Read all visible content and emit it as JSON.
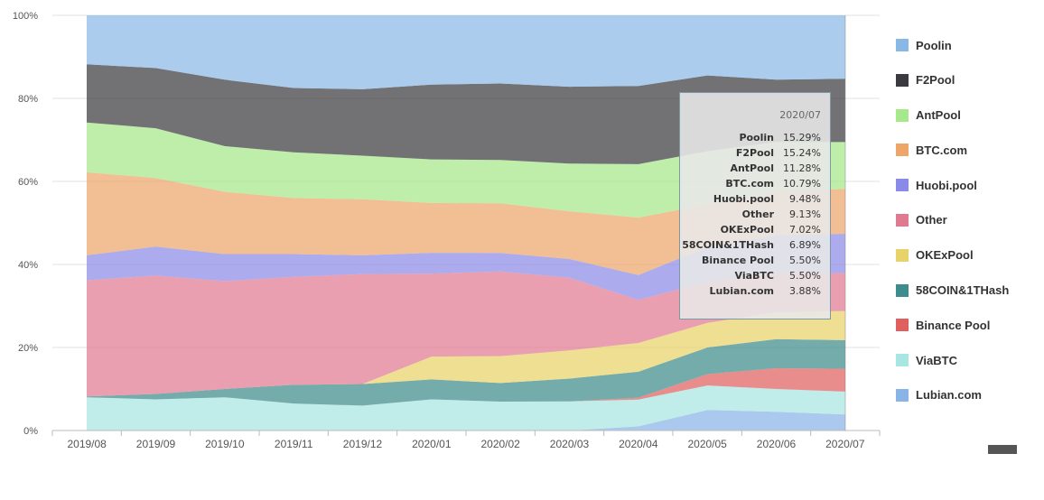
{
  "chart_data": {
    "type": "area",
    "stacked": "percent",
    "categories": [
      "2019/08",
      "2019/09",
      "2019/10",
      "2019/11",
      "2019/12",
      "2020/01",
      "2020/02",
      "2020/03",
      "2020/04",
      "2020/05",
      "2020/06",
      "2020/07"
    ],
    "y_ticks": [
      "100%",
      "80%",
      "60%",
      "40%",
      "20%",
      "0%"
    ],
    "ylim": [
      0,
      100
    ],
    "grid": true,
    "legend_position": "right",
    "series": [
      {
        "name": "Lubian.com",
        "color": "#8ab4e8",
        "values": [
          0,
          0,
          0,
          0,
          0,
          0,
          0,
          0,
          1,
          5,
          4.5,
          3.88
        ]
      },
      {
        "name": "ViaBTC",
        "color": "#a8e6e2",
        "values": [
          8,
          7.5,
          8,
          6.5,
          6,
          7.5,
          7,
          7,
          6.5,
          6,
          5.5,
          5.5
        ]
      },
      {
        "name": "Binance Pool",
        "color": "#e06060",
        "values": [
          0,
          0,
          0,
          0,
          0,
          0,
          0,
          0,
          0.5,
          2.8,
          5,
          5.5
        ]
      },
      {
        "name": "58COIN&1THash",
        "color": "#3f8c8c",
        "values": [
          0.2,
          1.3,
          2,
          4.5,
          5.2,
          4.8,
          4.5,
          5.5,
          6.3,
          6.5,
          7,
          6.89
        ]
      },
      {
        "name": "OKExPool",
        "color": "#e8d36a",
        "values": [
          0,
          0,
          0,
          0,
          0,
          5.5,
          6.5,
          6.8,
          7,
          6,
          6.5,
          7.02
        ]
      },
      {
        "name": "Other",
        "color": "#e07a90",
        "values": [
          28,
          28.5,
          26,
          26,
          26.5,
          20,
          20.5,
          17.5,
          10.5,
          10,
          9.5,
          9.13
        ]
      },
      {
        "name": "Huobi.pool",
        "color": "#8a8ae8",
        "values": [
          6,
          7,
          6.5,
          5.5,
          4.5,
          5,
          4.5,
          4.5,
          6,
          8.5,
          9,
          9.48
        ]
      },
      {
        "name": "BTC.com",
        "color": "#eda56a",
        "values": [
          20,
          16.5,
          15,
          13.5,
          13.5,
          12,
          12,
          11.5,
          14,
          10.5,
          10.5,
          10.79
        ]
      },
      {
        "name": "AntPool",
        "color": "#a6e88a",
        "values": [
          12,
          12,
          11,
          11,
          10.5,
          10.5,
          10.5,
          11.5,
          13,
          13,
          12,
          11.28
        ]
      },
      {
        "name": "F2Pool",
        "color": "#3b3a3f",
        "values": [
          14,
          14.5,
          16,
          15.5,
          16,
          18,
          18.5,
          18.5,
          19,
          18.5,
          15,
          15.24
        ]
      },
      {
        "name": "Poolin",
        "color": "#8ab8e6",
        "values": [
          11.8,
          12.7,
          15.5,
          17.5,
          17.8,
          16.7,
          16.5,
          17.2,
          17.2,
          14.7,
          15.5,
          15.29
        ]
      }
    ]
  },
  "legend": {
    "items": [
      {
        "label": "Poolin",
        "color": "#8ab8e6"
      },
      {
        "label": "F2Pool",
        "color": "#3b3a3f"
      },
      {
        "label": "AntPool",
        "color": "#a6e88a"
      },
      {
        "label": "BTC.com",
        "color": "#eda56a"
      },
      {
        "label": "Huobi.pool",
        "color": "#8a8ae8"
      },
      {
        "label": "Other",
        "color": "#e07a90"
      },
      {
        "label": "OKExPool",
        "color": "#e8d36a"
      },
      {
        "label": "58COIN&1THash",
        "color": "#3f8c8c"
      },
      {
        "label": "Binance Pool",
        "color": "#e06060"
      },
      {
        "label": "ViaBTC",
        "color": "#a8e6e2"
      },
      {
        "label": "Lubian.com",
        "color": "#8ab4e8"
      }
    ]
  },
  "tooltip": {
    "title": "2020/07",
    "rows": [
      {
        "name": "Poolin",
        "value": "15.29%"
      },
      {
        "name": "F2Pool",
        "value": "15.24%"
      },
      {
        "name": "AntPool",
        "value": "11.28%"
      },
      {
        "name": "BTC.com",
        "value": "10.79%"
      },
      {
        "name": "Huobi.pool",
        "value": "9.48%"
      },
      {
        "name": "Other",
        "value": "9.13%"
      },
      {
        "name": "OKExPool",
        "value": "7.02%"
      },
      {
        "name": "58COIN&1THash",
        "value": "6.89%"
      },
      {
        "name": "Binance Pool",
        "value": "5.50%"
      },
      {
        "name": "ViaBTC",
        "value": "5.50%"
      },
      {
        "name": "Lubian.com",
        "value": "3.88%"
      }
    ]
  }
}
